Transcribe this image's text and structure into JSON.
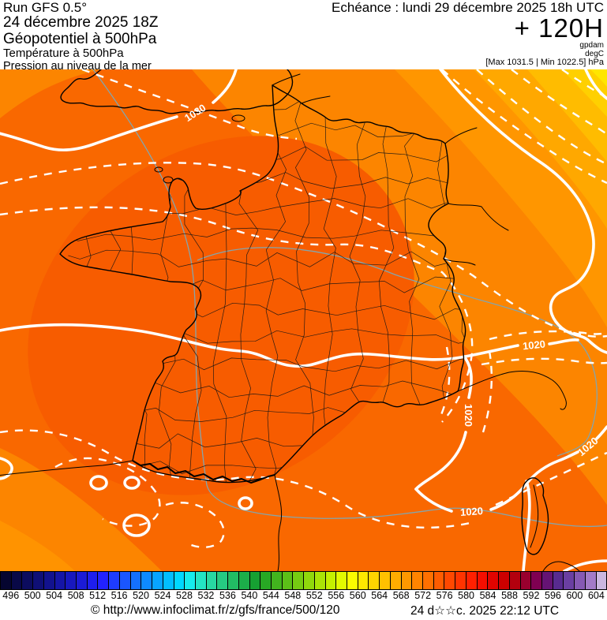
{
  "header": {
    "left": {
      "run": "Run GFS 0.5°",
      "run_date": "24 décembre 2025 18Z",
      "field1": "Géopotentiel à 500hPa",
      "field2": "Température à 500hPa",
      "field3": "Pression au niveau de la mer"
    },
    "right": {
      "echeance": "Echéance : lundi 29 décembre 2025 18h UTC",
      "forecast_hour": "+ 120H",
      "unit1": "gpdam",
      "unit2": "degC",
      "minmax": "[Max 1031.5 | Min 1022.5] hPa"
    }
  },
  "map": {
    "isobar_labels": [
      {
        "text": "1030"
      },
      {
        "text": "1020"
      },
      {
        "text": "1020"
      },
      {
        "text": "1020"
      },
      {
        "text": "1020"
      }
    ],
    "colors": {
      "base": "#F96800",
      "core": "#F75C00",
      "band_light": "#FC8500",
      "band_2": "#FF9600",
      "band_3": "#FFA800",
      "band_4": "#FFBC00",
      "band_5": "#FFD000",
      "band_corner": "#FFE600",
      "nw_corner": "#FC8500",
      "sw_band": "#FC8500",
      "sw_corner": "#FF9300",
      "isobar": "#FFFFFF",
      "geopotential_line": "#84A5AC",
      "borders": "#000000"
    }
  },
  "colorbar": {
    "unit_values": [
      496,
      500,
      504,
      508,
      512,
      516,
      520,
      524,
      528,
      532,
      536,
      540,
      544,
      548,
      552,
      556,
      560,
      564,
      568,
      572,
      576,
      580,
      584,
      588,
      592,
      596,
      600,
      604
    ],
    "cell_colors": [
      "#050530",
      "#090947",
      "#0C0C5E",
      "#0F0F76",
      "#12128E",
      "#1515A6",
      "#1818BE",
      "#1B1BD6",
      "#1E1EEE",
      "#2222FF",
      "#1E3CFF",
      "#1A56FF",
      "#1470FF",
      "#0E8AFF",
      "#08A4FF",
      "#02BEFF",
      "#00D8FF",
      "#16ECEC",
      "#24E4C4",
      "#28D8A2",
      "#26CA82",
      "#22BC64",
      "#1CAE4A",
      "#16A032",
      "#28A824",
      "#42B41E",
      "#5CC018",
      "#76CC12",
      "#90D80C",
      "#AAE406",
      "#C4F000",
      "#E2FA00",
      "#FCFC00",
      "#FFE800",
      "#FFD400",
      "#FFC000",
      "#FFAC00",
      "#FF9800",
      "#FF8400",
      "#FF7000",
      "#FF5C00",
      "#FF4800",
      "#FF3400",
      "#FF2000",
      "#F50E00",
      "#E10400",
      "#CD0000",
      "#B3000E",
      "#99002E",
      "#7F0052",
      "#651374",
      "#582B90",
      "#6A3FA2",
      "#8659B4",
      "#A37BC8",
      "#CBB7E0"
    ]
  },
  "footer": {
    "copyright": "© http://www.infoclimat.fr/z/gfs/france/500/120",
    "datetime": "24 d☆☆c. 2025 22:12 UTC"
  }
}
